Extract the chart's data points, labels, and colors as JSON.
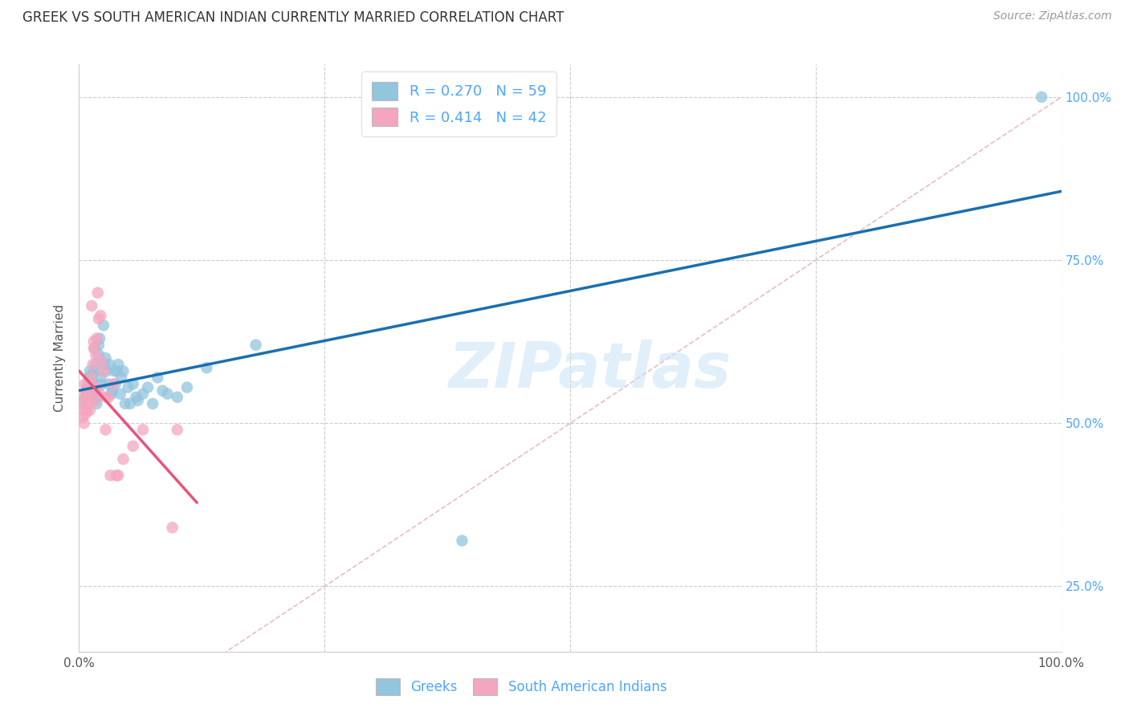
{
  "title": "GREEK VS SOUTH AMERICAN INDIAN CURRENTLY MARRIED CORRELATION CHART",
  "source": "Source: ZipAtlas.com",
  "ylabel": "Currently Married",
  "watermark": "ZIPatlas",
  "legend_label1": "Greeks",
  "legend_label2": "South American Indians",
  "r1": 0.27,
  "n1": 59,
  "r2": 0.414,
  "n2": 42,
  "color_blue": "#92c5de",
  "color_pink": "#f4a6c0",
  "color_blue_line": "#1a6faf",
  "color_pink_line": "#e8547a",
  "color_diag": "#dda0b0",
  "xlim": [
    0.0,
    1.0
  ],
  "ylim": [
    0.15,
    1.05
  ],
  "yticks": [
    0.25,
    0.5,
    0.75,
    1.0
  ],
  "ytick_labels": [
    "25.0%",
    "50.0%",
    "75.0%",
    "100.0%"
  ],
  "xticks": [
    0.0,
    0.25,
    0.5,
    0.75,
    1.0
  ],
  "xtick_labels": [
    "0.0%",
    "",
    "",
    "",
    "100.0%"
  ],
  "greek_x": [
    0.005,
    0.007,
    0.008,
    0.009,
    0.01,
    0.01,
    0.01,
    0.011,
    0.011,
    0.012,
    0.012,
    0.013,
    0.014,
    0.015,
    0.015,
    0.016,
    0.016,
    0.017,
    0.018,
    0.018,
    0.019,
    0.02,
    0.02,
    0.021,
    0.022,
    0.023,
    0.025,
    0.026,
    0.027,
    0.028,
    0.03,
    0.031,
    0.033,
    0.034,
    0.036,
    0.037,
    0.039,
    0.04,
    0.042,
    0.043,
    0.045,
    0.047,
    0.05,
    0.052,
    0.055,
    0.058,
    0.06,
    0.065,
    0.07,
    0.075,
    0.08,
    0.085,
    0.09,
    0.1,
    0.11,
    0.13,
    0.18,
    0.39,
    0.98
  ],
  "greek_y": [
    0.535,
    0.545,
    0.555,
    0.54,
    0.55,
    0.56,
    0.57,
    0.54,
    0.58,
    0.545,
    0.555,
    0.565,
    0.575,
    0.55,
    0.56,
    0.615,
    0.58,
    0.59,
    0.545,
    0.53,
    0.54,
    0.62,
    0.605,
    0.63,
    0.57,
    0.56,
    0.65,
    0.59,
    0.6,
    0.58,
    0.56,
    0.59,
    0.545,
    0.55,
    0.58,
    0.56,
    0.58,
    0.59,
    0.545,
    0.57,
    0.58,
    0.53,
    0.555,
    0.53,
    0.56,
    0.54,
    0.535,
    0.545,
    0.555,
    0.53,
    0.57,
    0.55,
    0.545,
    0.54,
    0.555,
    0.585,
    0.62,
    0.32,
    1.0
  ],
  "sai_x": [
    0.003,
    0.004,
    0.005,
    0.005,
    0.006,
    0.006,
    0.007,
    0.007,
    0.008,
    0.008,
    0.009,
    0.01,
    0.01,
    0.011,
    0.011,
    0.012,
    0.013,
    0.014,
    0.015,
    0.015,
    0.016,
    0.017,
    0.018,
    0.018,
    0.019,
    0.02,
    0.021,
    0.022,
    0.023,
    0.025,
    0.027,
    0.028,
    0.03,
    0.032,
    0.035,
    0.038,
    0.04,
    0.045,
    0.055,
    0.065,
    0.095,
    0.1
  ],
  "sai_y": [
    0.53,
    0.51,
    0.5,
    0.52,
    0.54,
    0.56,
    0.515,
    0.545,
    0.52,
    0.555,
    0.54,
    0.53,
    0.55,
    0.52,
    0.54,
    0.57,
    0.68,
    0.59,
    0.625,
    0.615,
    0.535,
    0.605,
    0.63,
    0.555,
    0.7,
    0.66,
    0.545,
    0.665,
    0.595,
    0.58,
    0.49,
    0.54,
    0.54,
    0.42,
    0.56,
    0.42,
    0.42,
    0.445,
    0.465,
    0.49,
    0.34,
    0.49
  ]
}
